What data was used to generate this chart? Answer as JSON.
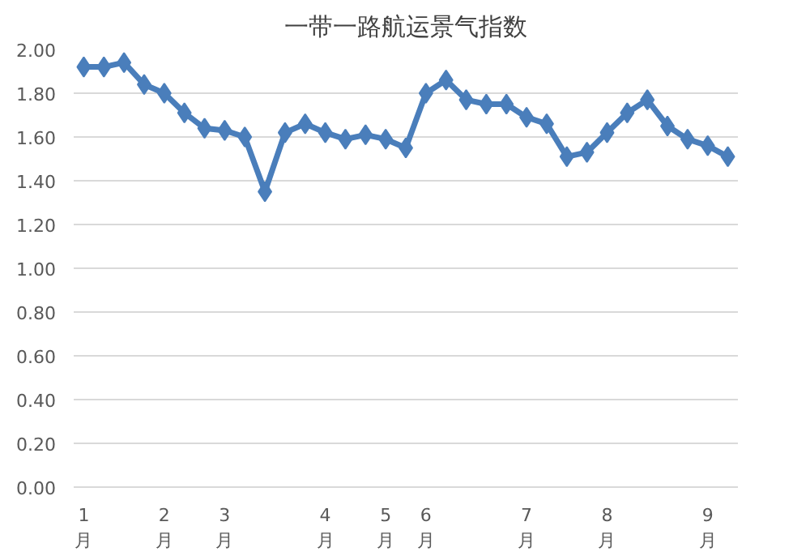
{
  "chart_data": {
    "type": "line",
    "title": "一带一路航运景气指数",
    "categories": [
      "1\n月",
      null,
      null,
      null,
      "2\n月",
      null,
      null,
      "3\n月",
      null,
      null,
      null,
      null,
      "4\n月",
      null,
      null,
      "5\n月",
      null,
      "6\n月",
      null,
      null,
      null,
      null,
      "7\n月",
      null,
      null,
      null,
      "8\n月",
      null,
      null,
      null,
      null,
      "9\n月",
      null
    ],
    "series": [
      {
        "color": "#4a7ebb",
        "values": [
          1.92,
          1.92,
          1.94,
          1.84,
          1.8,
          1.71,
          1.64,
          1.63,
          1.6,
          1.35,
          1.62,
          1.66,
          1.62,
          1.59,
          1.61,
          1.59,
          1.55,
          1.8,
          1.86,
          1.77,
          1.75,
          1.75,
          1.69,
          1.66,
          1.51,
          1.53,
          1.62,
          1.71,
          1.77,
          1.65,
          1.59,
          1.56,
          1.51
        ]
      }
    ],
    "ylim": [
      0,
      2
    ],
    "yticks": [
      {
        "value": 0,
        "label": "0.00"
      },
      {
        "value": 0.2,
        "label": "0.20"
      },
      {
        "value": 0.4,
        "label": "0.40"
      },
      {
        "value": 0.6,
        "label": "0.60"
      },
      {
        "value": 0.8,
        "label": "0.80"
      },
      {
        "value": 1.0,
        "label": "1.00"
      },
      {
        "value": 1.2,
        "label": "1.20"
      },
      {
        "value": 1.4,
        "label": "1.40"
      },
      {
        "value": 1.6,
        "label": "1.60"
      },
      {
        "value": 1.8,
        "label": "1.80"
      },
      {
        "value": 2.0,
        "label": "2.00"
      }
    ],
    "grid": "y",
    "marker": "diamond",
    "line_style": "solid"
  }
}
